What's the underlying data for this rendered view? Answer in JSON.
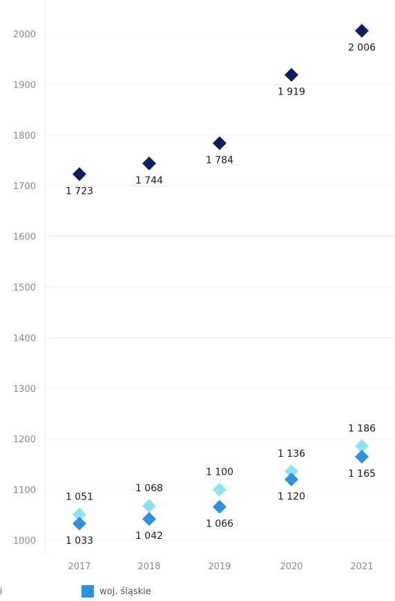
{
  "chart_data": {
    "type": "scatter",
    "marker": "diamond",
    "x": [
      "2017",
      "2018",
      "2019",
      "2020",
      "2021"
    ],
    "y_ticks": [
      1000,
      1100,
      1200,
      1300,
      1400,
      1500,
      1600,
      1700,
      1800,
      1900,
      2000
    ],
    "ylim": [
      980,
      2060
    ],
    "grid": true,
    "series": [
      {
        "color": "#0b1f5c",
        "values": [
          1723,
          1744,
          1784,
          1919,
          2006
        ],
        "labels": [
          "1 723",
          "1 744",
          "1 784",
          "1 919",
          "2 006"
        ]
      },
      {
        "color": "#8fe3f0",
        "values": [
          1051,
          1068,
          1100,
          1136,
          1186
        ],
        "labels": [
          "1 051",
          "1 068",
          "1 100",
          "1 136",
          "1 186"
        ]
      },
      {
        "name": "woj. śląskie",
        "color": "#2e90df",
        "values": [
          1033,
          1042,
          1066,
          1120,
          1165
        ],
        "labels": [
          "1 033",
          "1 042",
          "1 066",
          "1 120",
          "1 165"
        ]
      }
    ],
    "legend": {
      "placement": "bottom",
      "fragment": "i",
      "items": [
        {
          "label": "woj. śląskie",
          "color": "#2e90df"
        }
      ]
    }
  }
}
